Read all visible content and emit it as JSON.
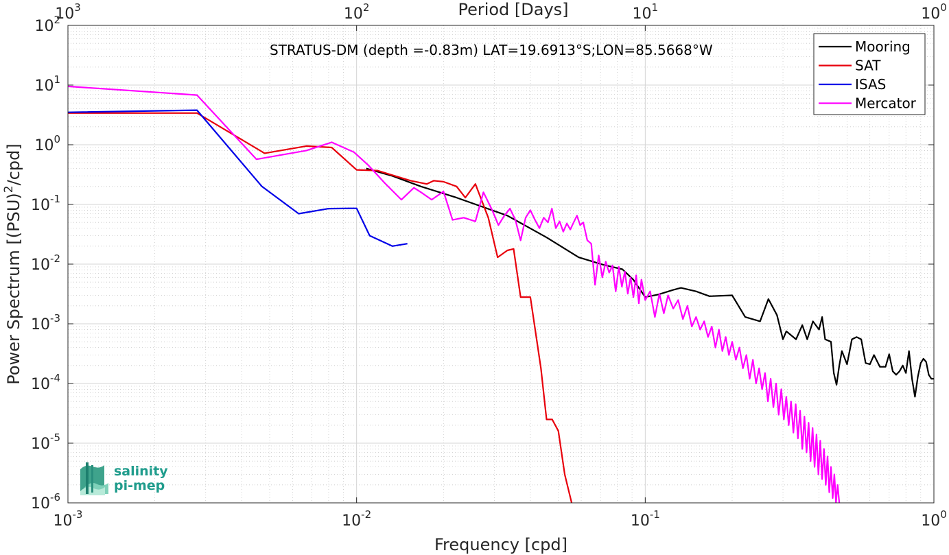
{
  "chart_data": {
    "type": "line",
    "title": "",
    "annotation": "STRATUS-DM (depth =-0.83m) LAT=19.6913°S;LON=85.5668°W",
    "xlabel": "Frequency [cpd]",
    "ylabel": "Power Spectrum [(PSU)",
    "ylabel_sup": "2",
    "ylabel_suffix": "/cpd]",
    "top_xlabel": "Period [Days]",
    "xscale": "log",
    "yscale": "log",
    "xlim": [
      0.001,
      1
    ],
    "ylim": [
      1e-06,
      100
    ],
    "grid": true,
    "minor_grid": true,
    "legend_position": "top-right",
    "x_ticks": [
      {
        "value": 0.001,
        "base": "10",
        "exp": "-3"
      },
      {
        "value": 0.01,
        "base": "10",
        "exp": "-2"
      },
      {
        "value": 0.1,
        "base": "10",
        "exp": "-1"
      },
      {
        "value": 1,
        "base": "10",
        "exp": "0"
      }
    ],
    "top_x_ticks": [
      {
        "value": 0.001,
        "base": "10",
        "exp": "3"
      },
      {
        "value": 0.01,
        "base": "10",
        "exp": "2"
      },
      {
        "value": 0.1,
        "base": "10",
        "exp": "1"
      },
      {
        "value": 1,
        "base": "10",
        "exp": "0"
      }
    ],
    "y_ticks": [
      {
        "value": 100,
        "base": "10",
        "exp": "2"
      },
      {
        "value": 10,
        "base": "10",
        "exp": "1"
      },
      {
        "value": 1,
        "base": "10",
        "exp": "0"
      },
      {
        "value": 0.1,
        "base": "10",
        "exp": "-1"
      },
      {
        "value": 0.01,
        "base": "10",
        "exp": "-2"
      },
      {
        "value": 0.001,
        "base": "10",
        "exp": "-3"
      },
      {
        "value": 0.0001,
        "base": "10",
        "exp": "-4"
      },
      {
        "value": 1e-05,
        "base": "10",
        "exp": "-5"
      },
      {
        "value": 1e-06,
        "base": "10",
        "exp": "-6"
      }
    ],
    "series": [
      {
        "name": "Mooring",
        "color": "#000000",
        "x": [
          0.0108,
          0.0133,
          0.0167,
          0.0222,
          0.0333,
          0.0455,
          0.0588,
          0.0714,
          0.0833,
          0.0909,
          0.1,
          0.111,
          0.125,
          0.133,
          0.15,
          0.167,
          0.2,
          0.222,
          0.25,
          0.267,
          0.286,
          0.3,
          0.308,
          0.333,
          0.35,
          0.364,
          0.381,
          0.4,
          0.41,
          0.42,
          0.44,
          0.45,
          0.46,
          0.47,
          0.48,
          0.5,
          0.52,
          0.54,
          0.56,
          0.58,
          0.6,
          0.62,
          0.65,
          0.68,
          0.7,
          0.72,
          0.74,
          0.76,
          0.78,
          0.8,
          0.82,
          0.84,
          0.86,
          0.88,
          0.9,
          0.92,
          0.94,
          0.96,
          0.98,
          1.0
        ],
        "y": [
          0.4,
          0.3,
          0.2,
          0.13,
          0.065,
          0.028,
          0.013,
          0.0098,
          0.0082,
          0.0055,
          0.0028,
          0.0031,
          0.0037,
          0.004,
          0.0035,
          0.0029,
          0.003,
          0.0013,
          0.0011,
          0.0026,
          0.0014,
          0.00055,
          0.00075,
          0.00055,
          0.00095,
          0.00055,
          0.0011,
          0.0008,
          0.0013,
          0.00055,
          0.0005,
          0.00015,
          9.5e-05,
          0.0002,
          0.00035,
          0.00021,
          0.00055,
          0.0006,
          0.00055,
          0.00022,
          0.00021,
          0.0003,
          0.00019,
          0.00019,
          0.00031,
          0.00016,
          0.00014,
          0.00016,
          0.0002,
          0.00015,
          0.00035,
          0.00012,
          6e-05,
          0.00013,
          0.00022,
          0.00026,
          0.00023,
          0.00014,
          0.00012,
          0.00012
        ]
      },
      {
        "name": "SAT",
        "color": "#e8000b",
        "x": [
          0.001,
          0.0028,
          0.0048,
          0.0067,
          0.0082,
          0.01,
          0.0118,
          0.0133,
          0.0154,
          0.0175,
          0.0185,
          0.02,
          0.0222,
          0.0238,
          0.0258,
          0.0286,
          0.0308,
          0.0333,
          0.035,
          0.037,
          0.04,
          0.0435,
          0.0455,
          0.0476,
          0.05,
          0.0526,
          0.0556
        ],
        "y": [
          3.4,
          3.4,
          0.72,
          0.95,
          0.9,
          0.38,
          0.37,
          0.31,
          0.25,
          0.22,
          0.25,
          0.24,
          0.2,
          0.13,
          0.22,
          0.06,
          0.013,
          0.017,
          0.018,
          0.0028,
          0.0028,
          0.00018,
          2.5e-05,
          2.5e-05,
          1.6e-05,
          3e-06,
          1e-06
        ]
      },
      {
        "name": "ISAS",
        "color": "#0000e8",
        "x": [
          0.001,
          0.0028,
          0.0047,
          0.0063,
          0.008,
          0.0095,
          0.01,
          0.0111,
          0.0133,
          0.015
        ],
        "y": [
          3.5,
          3.8,
          0.2,
          0.07,
          0.085,
          0.086,
          0.086,
          0.03,
          0.02,
          0.022
        ]
      },
      {
        "name": "Mercator",
        "color": "#ff00ff",
        "x": [
          0.001,
          0.0028,
          0.0045,
          0.0067,
          0.0082,
          0.0098,
          0.011,
          0.0125,
          0.0143,
          0.0158,
          0.0167,
          0.0182,
          0.02,
          0.0215,
          0.0235,
          0.0258,
          0.0275,
          0.0295,
          0.031,
          0.0325,
          0.034,
          0.0355,
          0.037,
          0.0385,
          0.04,
          0.0415,
          0.043,
          0.0445,
          0.046,
          0.0475,
          0.049,
          0.0505,
          0.052,
          0.0535,
          0.055,
          0.0565,
          0.058,
          0.0595,
          0.061,
          0.063,
          0.065,
          0.067,
          0.069,
          0.071,
          0.073,
          0.075,
          0.077,
          0.079,
          0.081,
          0.083,
          0.085,
          0.087,
          0.089,
          0.091,
          0.093,
          0.095,
          0.097,
          0.1,
          0.104,
          0.108,
          0.112,
          0.116,
          0.12,
          0.125,
          0.13,
          0.135,
          0.14,
          0.145,
          0.15,
          0.155,
          0.16,
          0.165,
          0.17,
          0.175,
          0.18,
          0.185,
          0.19,
          0.195,
          0.2,
          0.206,
          0.212,
          0.218,
          0.224,
          0.23,
          0.236,
          0.242,
          0.248,
          0.254,
          0.26,
          0.266,
          0.272,
          0.278,
          0.284,
          0.29,
          0.296,
          0.302,
          0.308,
          0.314,
          0.32,
          0.326,
          0.332,
          0.338,
          0.344,
          0.35,
          0.356,
          0.362,
          0.368,
          0.374,
          0.38,
          0.386,
          0.392,
          0.398,
          0.404,
          0.41,
          0.416,
          0.422,
          0.428,
          0.434,
          0.44,
          0.446,
          0.452,
          0.458,
          0.464,
          0.47
        ],
        "y": [
          9.5,
          6.8,
          0.57,
          0.8,
          1.1,
          0.75,
          0.45,
          0.23,
          0.12,
          0.19,
          0.16,
          0.12,
          0.165,
          0.055,
          0.06,
          0.052,
          0.16,
          0.08,
          0.045,
          0.065,
          0.085,
          0.055,
          0.025,
          0.06,
          0.08,
          0.055,
          0.04,
          0.06,
          0.05,
          0.085,
          0.04,
          0.052,
          0.035,
          0.048,
          0.038,
          0.05,
          0.065,
          0.045,
          0.05,
          0.025,
          0.022,
          0.0045,
          0.014,
          0.006,
          0.011,
          0.0072,
          0.0095,
          0.0035,
          0.009,
          0.0042,
          0.0075,
          0.0032,
          0.006,
          0.0028,
          0.0065,
          0.0022,
          0.0055,
          0.0025,
          0.0035,
          0.0013,
          0.0032,
          0.0015,
          0.003,
          0.0018,
          0.0025,
          0.0012,
          0.002,
          0.0009,
          0.0013,
          0.0008,
          0.0011,
          0.0006,
          0.0009,
          0.0004,
          0.0008,
          0.00035,
          0.0006,
          0.0003,
          0.0005,
          0.00025,
          0.0004,
          0.00018,
          0.0003,
          0.00012,
          0.00025,
          0.0001,
          0.00018,
          8e-05,
          0.00015,
          5e-05,
          0.00012,
          4e-05,
          0.0001,
          3e-05,
          8e-05,
          2.5e-05,
          6e-05,
          2e-05,
          5e-05,
          1.5e-05,
          4.5e-05,
          1.2e-05,
          3.5e-05,
          8e-06,
          2.8e-05,
          7e-06,
          2.2e-05,
          5e-06,
          1.8e-05,
          4e-06,
          1.4e-05,
          3e-06,
          1.1e-05,
          2.5e-06,
          8e-06,
          2e-06,
          6e-06,
          1.5e-06,
          4e-06,
          1.2e-06,
          3e-06,
          1e-06,
          2e-06,
          1e-06
        ]
      }
    ]
  },
  "logo": {
    "line1": "salinity",
    "line2": "pi-mep",
    "color": "#1f9c8c"
  }
}
